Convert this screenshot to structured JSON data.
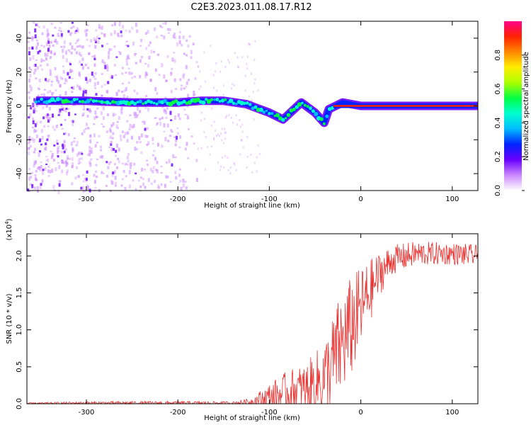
{
  "title": "C2E3.2023.011.08.17.R12",
  "chart_data": [
    {
      "type": "heatmap",
      "xlabel": "Height of straight line (km)",
      "ylabel": "Frequency (Hz)",
      "xlim": [
        -365,
        128
      ],
      "ylim": [
        -50,
        50
      ],
      "x_ticks": [
        -300,
        -200,
        -100,
        0,
        100
      ],
      "y_ticks": [
        -40,
        -20,
        0,
        20,
        40
      ],
      "colorbar": {
        "label": "Normalized spectral amplitude",
        "range": [
          0,
          1
        ],
        "ticks": [
          "0.0",
          "0.2",
          "0.4",
          "0.6",
          "0.8"
        ],
        "colors": [
          "#ffffff",
          "#cc88ff",
          "#6a00ff",
          "#0022ff",
          "#00bbff",
          "#00ffd0",
          "#00ff44",
          "#aaff00",
          "#ffee00",
          "#ff8800",
          "#ff2200",
          "#ff0088"
        ]
      },
      "ridge": [
        {
          "x": -355,
          "y": 3
        },
        {
          "x": -300,
          "y": 3
        },
        {
          "x": -250,
          "y": 2
        },
        {
          "x": -200,
          "y": 2
        },
        {
          "x": -175,
          "y": 3
        },
        {
          "x": -150,
          "y": 3
        },
        {
          "x": -125,
          "y": 1
        },
        {
          "x": -100,
          "y": -4
        },
        {
          "x": -85,
          "y": -8
        },
        {
          "x": -65,
          "y": 2
        },
        {
          "x": -50,
          "y": -4
        },
        {
          "x": -40,
          "y": -10
        },
        {
          "x": -35,
          "y": -2
        },
        {
          "x": -20,
          "y": 2
        },
        {
          "x": 0,
          "y": 0
        },
        {
          "x": 128,
          "y": 0
        }
      ]
    },
    {
      "type": "line",
      "xlabel": "Height of straight line (km)",
      "ylabel": "SNR (10 * v/v)",
      "y_multiplier": "(x10",
      "y_multiplier_exp": "4",
      "y_multiplier_close": ")",
      "xlim": [
        -365,
        128
      ],
      "ylim": [
        0,
        2.3
      ],
      "x_ticks": [
        -300,
        -200,
        -100,
        0,
        100
      ],
      "y_ticks": [
        "0.0",
        "0.5",
        "1.0",
        "1.5",
        "2.0"
      ],
      "series": [
        {
          "color": "#e8302e",
          "envelope": [
            {
              "x": -365,
              "mean": 0.005,
              "amp": 0.01
            },
            {
              "x": -300,
              "mean": 0.01,
              "amp": 0.02
            },
            {
              "x": -200,
              "mean": 0.01,
              "amp": 0.025
            },
            {
              "x": -140,
              "mean": 0.01,
              "amp": 0.02
            },
            {
              "x": -120,
              "mean": 0.03,
              "amp": 0.05
            },
            {
              "x": -100,
              "mean": 0.08,
              "amp": 0.2
            },
            {
              "x": -80,
              "mean": 0.15,
              "amp": 0.3
            },
            {
              "x": -60,
              "mean": 0.2,
              "amp": 0.35
            },
            {
              "x": -40,
              "mean": 0.35,
              "amp": 0.5
            },
            {
              "x": -25,
              "mean": 0.7,
              "amp": 0.7
            },
            {
              "x": -10,
              "mean": 1.05,
              "amp": 0.7
            },
            {
              "x": 5,
              "mean": 1.4,
              "amp": 0.5
            },
            {
              "x": 20,
              "mean": 1.75,
              "amp": 0.3
            },
            {
              "x": 35,
              "mean": 1.95,
              "amp": 0.2
            },
            {
              "x": 60,
              "mean": 2.03,
              "amp": 0.17
            },
            {
              "x": 100,
              "mean": 2.03,
              "amp": 0.15
            },
            {
              "x": 128,
              "mean": 2.0,
              "amp": 0.15
            }
          ]
        }
      ]
    }
  ]
}
